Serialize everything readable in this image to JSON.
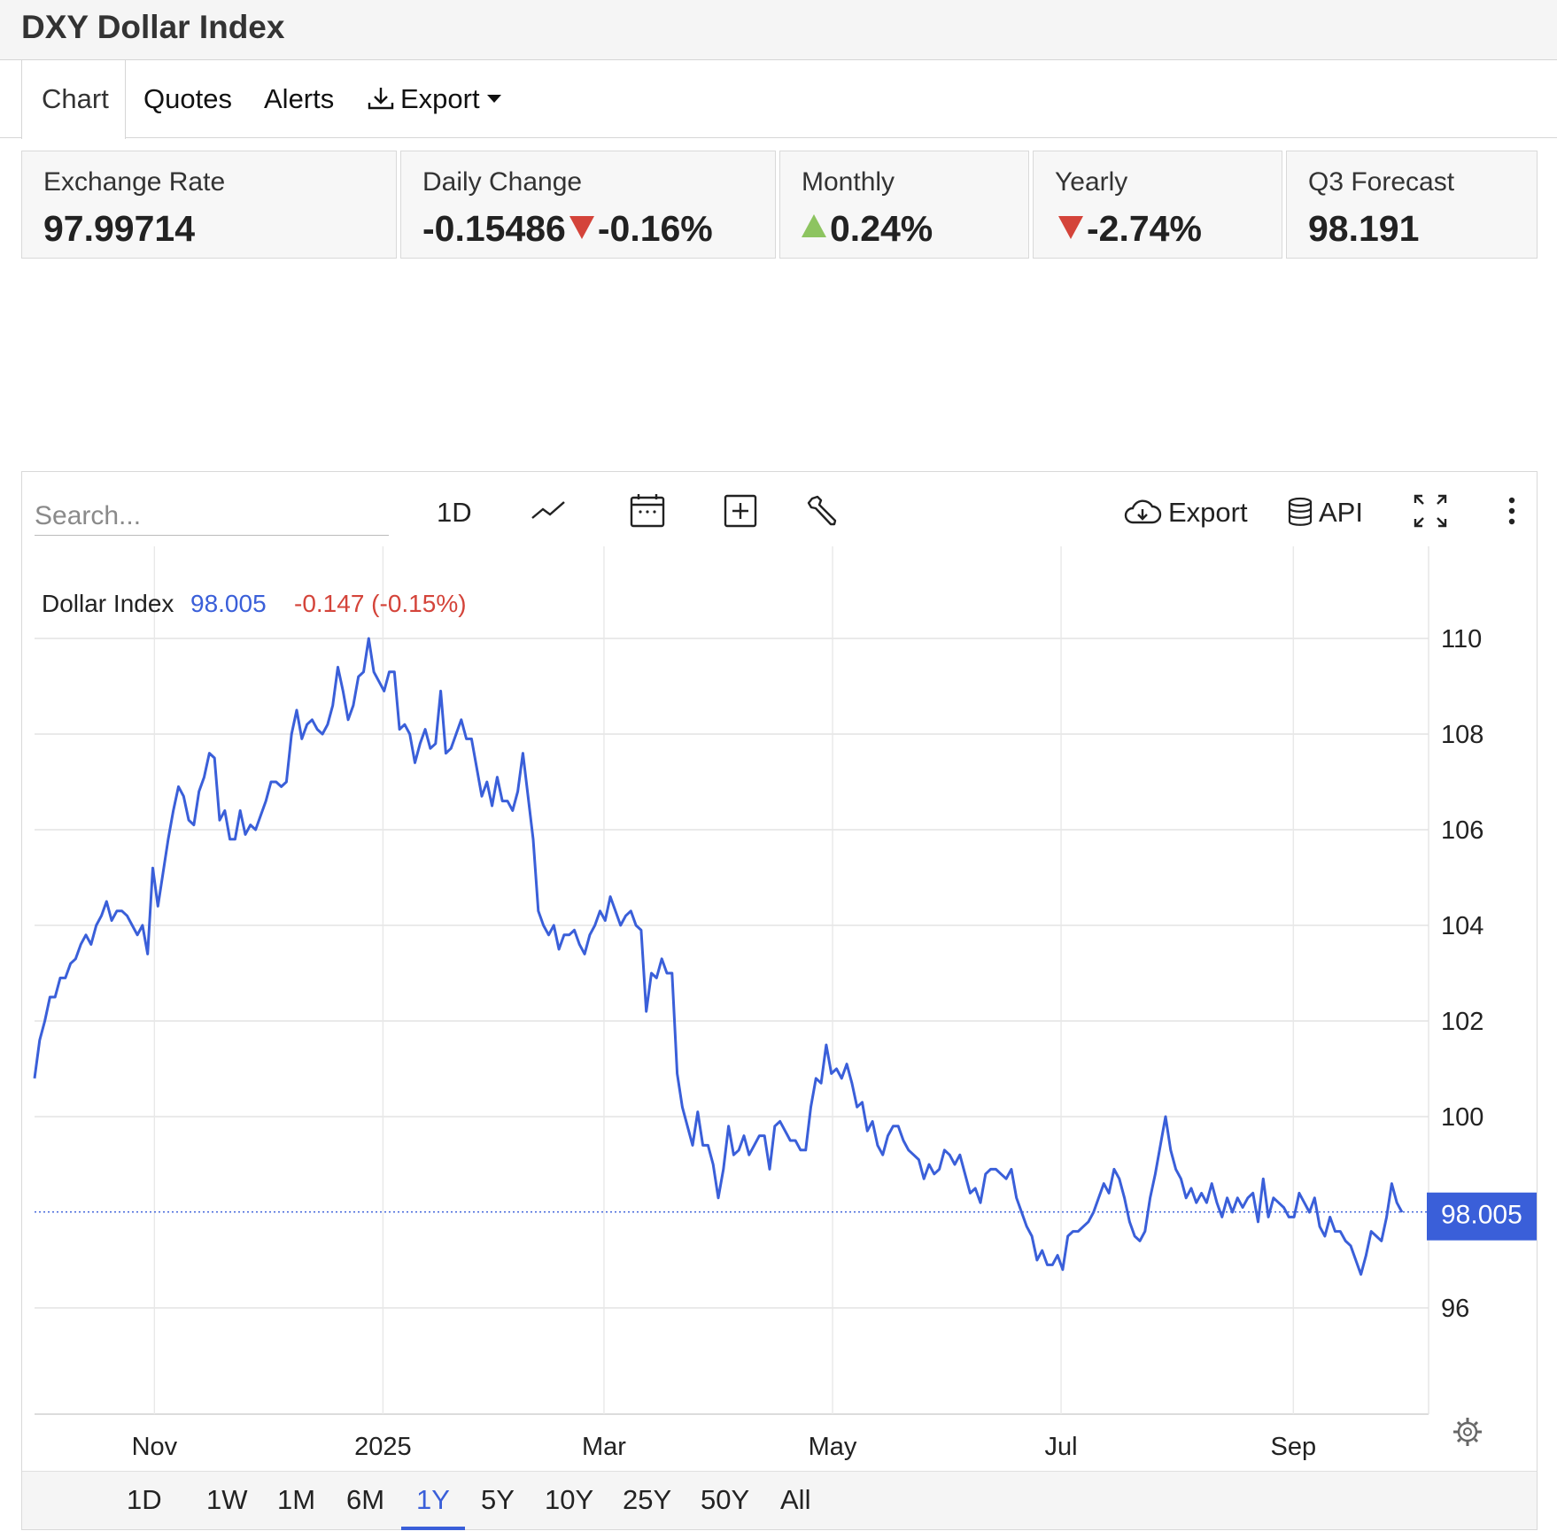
{
  "header": {
    "title": "DXY Dollar Index"
  },
  "tabs": [
    {
      "label": "Chart",
      "active": true
    },
    {
      "label": "Quotes"
    },
    {
      "label": "Alerts"
    },
    {
      "label": "Export",
      "icon": "download-icon",
      "dropdown": true
    }
  ],
  "stats": {
    "exchange_rate": {
      "label": "Exchange Rate",
      "value": "97.99714"
    },
    "daily_change": {
      "label": "Daily Change",
      "value": "-0.15486",
      "percent": "-0.16%"
    },
    "monthly": {
      "label": "Monthly",
      "percent": "0.24%"
    },
    "yearly": {
      "label": "Yearly",
      "percent": "-2.74%"
    },
    "forecast": {
      "label": "Q3 Forecast",
      "value": "98.191"
    }
  },
  "colors": {
    "negative": "#d4443a",
    "positive": "#8dc460",
    "line": "#3a5fd9",
    "accent": "#3a5fd9"
  },
  "chart_toolbar": {
    "search_placeholder": "Search...",
    "interval": "1D",
    "icons": [
      "line-type-icon",
      "calendar-icon",
      "add-indicator-icon",
      "wrench-icon"
    ],
    "export_label": "Export",
    "api_label": "API",
    "icon_names": [
      "cloud-download-icon",
      "database-icon",
      "fullscreen-icon",
      "more-vertical-icon"
    ]
  },
  "chart_data": {
    "type": "line",
    "legend": {
      "name": "Dollar Index",
      "value": "98.005",
      "change": "-0.147 (-0.15%)"
    },
    "last_value_label": "98.005",
    "last_value": 98.005,
    "ylim": [
      94,
      111
    ],
    "y_ticks": [
      96,
      100,
      102,
      104,
      106,
      108,
      110
    ],
    "y_tick_labels": [
      "96",
      "100",
      "102",
      "104",
      "106",
      "108",
      "110"
    ],
    "x_tick_labels": [
      "Nov",
      "2025",
      "Mar",
      "May",
      "Jul",
      "Sep"
    ],
    "x_tick_dates": [
      "2024-11-01",
      "2025-01-01",
      "2025-03-01",
      "2025-05-01",
      "2025-07-01",
      "2025-09-01"
    ],
    "grid": true,
    "series": [
      {
        "name": "Dollar Index",
        "x_start": "2024-09-30",
        "x_end": "2025-09-30",
        "values": [
          100.8,
          101.6,
          102.0,
          102.5,
          102.5,
          102.9,
          102.9,
          103.2,
          103.3,
          103.6,
          103.8,
          103.6,
          104.0,
          104.2,
          104.5,
          104.1,
          104.3,
          104.3,
          104.2,
          104.0,
          103.8,
          104.0,
          103.4,
          105.2,
          104.4,
          105.1,
          105.8,
          106.4,
          106.9,
          106.7,
          106.2,
          106.1,
          106.8,
          107.1,
          107.6,
          107.5,
          106.2,
          106.4,
          105.8,
          105.8,
          106.4,
          105.9,
          106.1,
          106.0,
          106.3,
          106.6,
          107.0,
          107.0,
          106.9,
          107.0,
          108.0,
          108.5,
          107.9,
          108.2,
          108.3,
          108.1,
          108.0,
          108.2,
          108.6,
          109.4,
          108.9,
          108.3,
          108.6,
          109.2,
          109.3,
          110.0,
          109.3,
          109.1,
          108.9,
          109.3,
          109.3,
          108.1,
          108.2,
          108.0,
          107.4,
          107.8,
          108.1,
          107.7,
          107.8,
          108.9,
          107.6,
          107.7,
          108.0,
          108.3,
          107.9,
          107.9,
          107.3,
          106.7,
          107.0,
          106.5,
          107.1,
          106.6,
          106.6,
          106.4,
          106.8,
          107.6,
          106.7,
          105.8,
          104.3,
          104.0,
          103.8,
          104.0,
          103.5,
          103.8,
          103.8,
          103.9,
          103.6,
          103.4,
          103.8,
          104.0,
          104.3,
          104.1,
          104.6,
          104.3,
          104.0,
          104.2,
          104.3,
          104.0,
          103.9,
          102.2,
          103.0,
          102.9,
          103.3,
          103.0,
          103.0,
          100.9,
          100.2,
          99.8,
          99.4,
          100.1,
          99.4,
          99.4,
          99.0,
          98.3,
          98.9,
          99.8,
          99.2,
          99.3,
          99.6,
          99.2,
          99.4,
          99.6,
          99.6,
          98.9,
          99.8,
          99.9,
          99.7,
          99.5,
          99.5,
          99.3,
          99.3,
          100.2,
          100.8,
          100.7,
          101.5,
          100.9,
          101.0,
          100.8,
          101.1,
          100.7,
          100.2,
          100.3,
          99.7,
          99.9,
          99.4,
          99.2,
          99.6,
          99.8,
          99.8,
          99.5,
          99.3,
          99.2,
          99.1,
          98.7,
          99.0,
          98.8,
          98.9,
          99.3,
          99.2,
          99.0,
          99.2,
          98.8,
          98.4,
          98.5,
          98.2,
          98.8,
          98.9,
          98.9,
          98.8,
          98.7,
          98.9,
          98.3,
          98.0,
          97.7,
          97.5,
          97.0,
          97.2,
          96.9,
          96.9,
          97.1,
          96.8,
          97.5,
          97.6,
          97.6,
          97.7,
          97.8,
          98.0,
          98.3,
          98.6,
          98.4,
          98.9,
          98.7,
          98.3,
          97.8,
          97.5,
          97.4,
          97.6,
          98.3,
          98.8,
          99.4,
          100.0,
          99.3,
          98.9,
          98.7,
          98.3,
          98.5,
          98.2,
          98.4,
          98.2,
          98.6,
          98.2,
          97.9,
          98.3,
          98.0,
          98.3,
          98.1,
          98.3,
          98.4,
          97.8,
          98.7,
          97.9,
          98.3,
          98.2,
          98.1,
          97.9,
          97.9,
          98.4,
          98.2,
          98.0,
          98.3,
          97.7,
          97.5,
          97.9,
          97.6,
          97.6,
          97.4,
          97.3,
          97.0,
          96.7,
          97.1,
          97.6,
          97.5,
          97.4,
          97.9,
          98.6,
          98.2,
          98.0
        ]
      }
    ]
  },
  "range_buttons": [
    {
      "label": "1D"
    },
    {
      "label": "1W"
    },
    {
      "label": "1M"
    },
    {
      "label": "6M"
    },
    {
      "label": "1Y",
      "active": true
    },
    {
      "label": "5Y"
    },
    {
      "label": "10Y"
    },
    {
      "label": "25Y"
    },
    {
      "label": "50Y"
    },
    {
      "label": "All"
    }
  ]
}
